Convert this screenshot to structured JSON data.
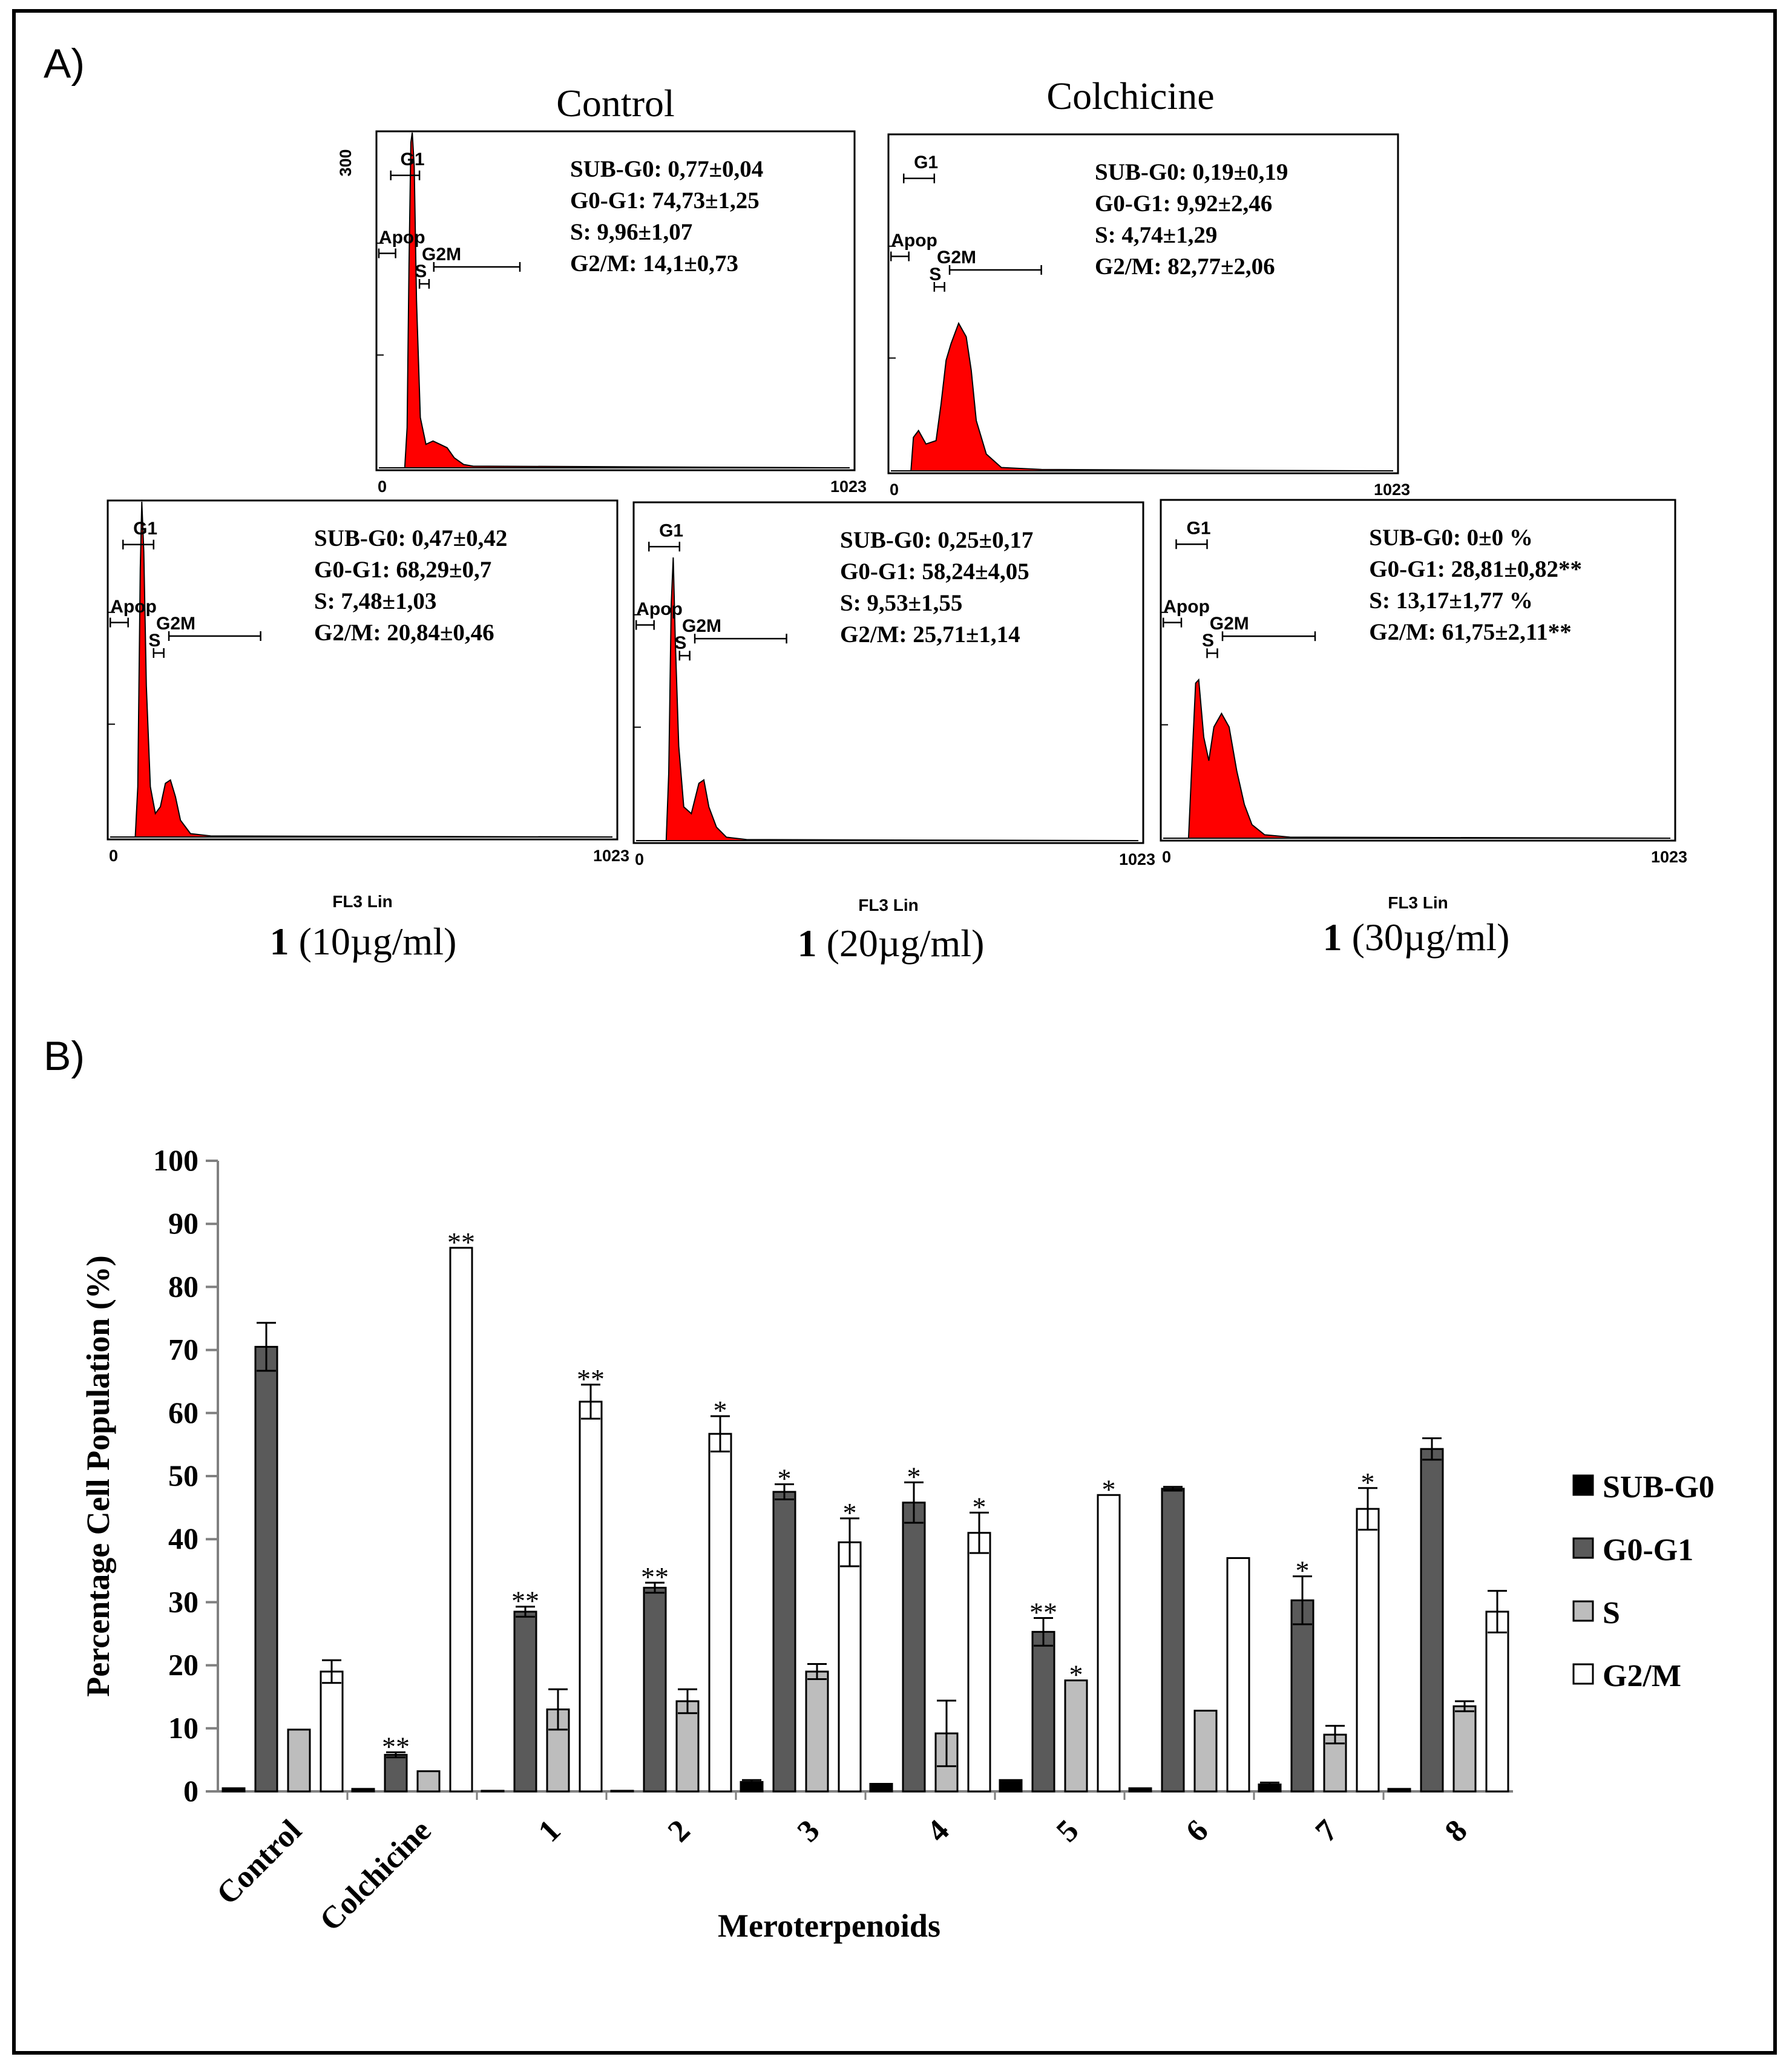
{
  "panel_labels": {
    "a": "A)",
    "b": "B)"
  },
  "histograms": [
    {
      "title": "Control",
      "title_bold": "",
      "ytick": "300",
      "xmin": "0",
      "xmax": "1023",
      "axis_label": "",
      "stats": [
        "SUB-G0: 0,77±0,04",
        "G0-G1: 74,73±1,25",
        "S: 9,96±1,07",
        "G2/M: 14,1±0,73"
      ],
      "gates": {
        "g1": "G1",
        "apop": "Apop",
        "s": "S",
        "g2m": "G2M"
      },
      "profile": [
        [
          0,
          0
        ],
        [
          0.055,
          0
        ],
        [
          0.06,
          0.12
        ],
        [
          0.064,
          0.6
        ],
        [
          0.068,
          0.97
        ],
        [
          0.071,
          1.0
        ],
        [
          0.075,
          0.9
        ],
        [
          0.08,
          0.5
        ],
        [
          0.088,
          0.15
        ],
        [
          0.1,
          0.07
        ],
        [
          0.115,
          0.08
        ],
        [
          0.13,
          0.07
        ],
        [
          0.145,
          0.06
        ],
        [
          0.16,
          0.03
        ],
        [
          0.18,
          0.01
        ],
        [
          0.2,
          0.005
        ],
        [
          1,
          0
        ]
      ]
    },
    {
      "title": "Colchicine",
      "title_bold": "",
      "ytick": "",
      "xmin": "0",
      "xmax": "1023",
      "axis_label": "",
      "stats": [
        "SUB-G0: 0,19±0,19",
        "G0-G1: 9,92±2,46",
        "S: 4,74±1,29",
        "G2/M: 82,77±2,06"
      ],
      "gates": {
        "g1": "G1",
        "apop": "Apop",
        "s": "S",
        "g2m": "G2M"
      },
      "profile": [
        [
          0,
          0
        ],
        [
          0.04,
          0
        ],
        [
          0.045,
          0.1
        ],
        [
          0.055,
          0.12
        ],
        [
          0.07,
          0.08
        ],
        [
          0.09,
          0.09
        ],
        [
          0.1,
          0.2
        ],
        [
          0.11,
          0.33
        ],
        [
          0.12,
          0.38
        ],
        [
          0.135,
          0.44
        ],
        [
          0.15,
          0.4
        ],
        [
          0.16,
          0.3
        ],
        [
          0.17,
          0.15
        ],
        [
          0.19,
          0.05
        ],
        [
          0.22,
          0.01
        ],
        [
          0.3,
          0.004
        ],
        [
          1,
          0
        ]
      ]
    },
    {
      "title": "(10µg/ml)",
      "title_bold": "1",
      "ytick": "",
      "xmin": "0",
      "xmax": "1023",
      "axis_label": "FL3 Lin",
      "stats": [
        "SUB-G0: 0,47±0,42",
        "G0-G1: 68,29±0,7",
        "S: 7,48±1,03",
        "G2/M: 20,84±0,46"
      ],
      "gates": {
        "g1": "G1",
        "apop": "Apop",
        "s": "S",
        "g2m": "G2M"
      },
      "profile": [
        [
          0,
          0
        ],
        [
          0.05,
          0
        ],
        [
          0.055,
          0.15
        ],
        [
          0.06,
          0.8
        ],
        [
          0.063,
          1.0
        ],
        [
          0.067,
          0.85
        ],
        [
          0.072,
          0.45
        ],
        [
          0.08,
          0.15
        ],
        [
          0.09,
          0.07
        ],
        [
          0.1,
          0.09
        ],
        [
          0.11,
          0.16
        ],
        [
          0.12,
          0.17
        ],
        [
          0.13,
          0.12
        ],
        [
          0.14,
          0.05
        ],
        [
          0.16,
          0.01
        ],
        [
          0.2,
          0.003
        ],
        [
          1,
          0
        ]
      ]
    },
    {
      "title": "(20µg/ml)",
      "title_bold": "1",
      "ytick": "",
      "xmin": "0",
      "xmax": "1023",
      "axis_label": "FL3 Lin",
      "stats": [
        "SUB-G0: 0,25±0,17",
        "G0-G1: 58,24±4,05",
        "S: 9,53±1,55",
        "G2/M: 25,71±1,14"
      ],
      "gates": {
        "g1": "G1",
        "apop": "Apop",
        "s": "S",
        "g2m": "G2M"
      },
      "profile": [
        [
          0,
          0
        ],
        [
          0.06,
          0
        ],
        [
          0.065,
          0.2
        ],
        [
          0.07,
          0.7
        ],
        [
          0.074,
          0.84
        ],
        [
          0.078,
          0.6
        ],
        [
          0.085,
          0.28
        ],
        [
          0.095,
          0.1
        ],
        [
          0.11,
          0.08
        ],
        [
          0.125,
          0.17
        ],
        [
          0.135,
          0.18
        ],
        [
          0.145,
          0.1
        ],
        [
          0.16,
          0.04
        ],
        [
          0.18,
          0.01
        ],
        [
          0.22,
          0.003
        ],
        [
          1,
          0
        ]
      ]
    },
    {
      "title": "(30µg/ml)",
      "title_bold": "1",
      "ytick": "",
      "xmin": "0",
      "xmax": "1023",
      "axis_label": "FL3 Lin",
      "stats": [
        "SUB-G0: 0±0 %",
        "G0-G1: 28,81±0,82**",
        "S: 13,17±1,77 %",
        "G2/M: 61,75±2,11**"
      ],
      "gates": {
        "g1": "G1",
        "apop": "Apop",
        "s": "S",
        "g2m": "G2M"
      },
      "profile": [
        [
          0,
          0
        ],
        [
          0.05,
          0
        ],
        [
          0.056,
          0.2
        ],
        [
          0.064,
          0.46
        ],
        [
          0.07,
          0.47
        ],
        [
          0.08,
          0.3
        ],
        [
          0.09,
          0.23
        ],
        [
          0.1,
          0.33
        ],
        [
          0.115,
          0.37
        ],
        [
          0.13,
          0.33
        ],
        [
          0.145,
          0.2
        ],
        [
          0.16,
          0.1
        ],
        [
          0.175,
          0.04
        ],
        [
          0.2,
          0.01
        ],
        [
          0.25,
          0.003
        ],
        [
          1,
          0
        ]
      ]
    }
  ],
  "chart_data": {
    "type": "bar",
    "title": "",
    "xlabel": "Meroterpenoids",
    "ylabel": "Percentage Cell Population (%)",
    "ylim": [
      0,
      100
    ],
    "yticks": [
      0,
      10,
      20,
      30,
      40,
      50,
      60,
      70,
      80,
      90,
      100
    ],
    "categories": [
      "Control",
      "Colchicine",
      "1",
      "2",
      "3",
      "4",
      "5",
      "6",
      "7",
      "8"
    ],
    "legend_position": "right",
    "series": [
      {
        "name": "SUB-G0",
        "color": "#000000",
        "values": [
          0.5,
          0.4,
          0.1,
          0.1,
          1.5,
          1.2,
          1.8,
          0.5,
          1.1,
          0.4
        ],
        "errors": [
          0,
          0,
          0,
          0,
          0.3,
          0,
          0,
          0,
          0.3,
          0
        ],
        "stars": [
          "",
          "",
          "",
          "",
          "",
          "",
          "",
          "",
          "",
          ""
        ]
      },
      {
        "name": "G0-G1",
        "color": "#5a5a5a",
        "values": [
          70.5,
          5.8,
          28.5,
          32.3,
          47.5,
          45.8,
          25.3,
          48.0,
          30.3,
          54.3
        ],
        "errors": [
          3.8,
          0.4,
          0.8,
          0.8,
          1.2,
          3.2,
          2.2,
          0.3,
          3.8,
          1.7
        ],
        "stars": [
          "",
          "**",
          "**",
          "**",
          "*",
          "*",
          "**",
          "",
          "*",
          ""
        ]
      },
      {
        "name": "S",
        "color": "#bdbdbd",
        "values": [
          9.8,
          3.2,
          13.0,
          14.3,
          19.0,
          9.2,
          17.6,
          12.8,
          9.0,
          13.5
        ],
        "errors": [
          0,
          0,
          3.2,
          1.9,
          1.2,
          5.2,
          0,
          0,
          1.4,
          0.8
        ],
        "stars": [
          "",
          "",
          "",
          "",
          "",
          "",
          "*",
          "",
          "",
          ""
        ]
      },
      {
        "name": "G2/M",
        "color": "#ffffff",
        "values": [
          19.0,
          86.2,
          61.8,
          56.7,
          39.5,
          41.0,
          47.0,
          37.0,
          44.8,
          28.5
        ],
        "errors": [
          1.8,
          0,
          2.7,
          2.8,
          3.8,
          3.2,
          0,
          0,
          3.3,
          3.3
        ],
        "stars": [
          "",
          "**",
          "**",
          "*",
          "*",
          "*",
          "*",
          "",
          "*",
          ""
        ]
      }
    ]
  }
}
